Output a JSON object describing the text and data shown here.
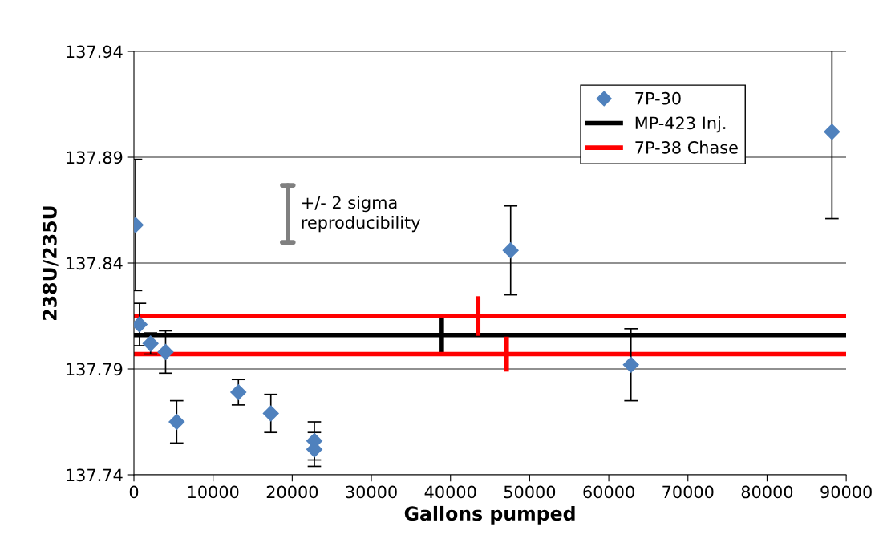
{
  "chart_data": {
    "type": "scatter",
    "xlabel": "Gallons pumped",
    "ylabel": "238U/235U",
    "xlim": [
      0,
      90000
    ],
    "xticks": [
      0,
      10000,
      20000,
      30000,
      40000,
      50000,
      60000,
      70000,
      80000,
      90000
    ],
    "ylim": [
      137.74,
      137.94
    ],
    "yticks": [
      137.74,
      137.79,
      137.84,
      137.89,
      137.94
    ],
    "grid": "y",
    "legend": "top right",
    "annotations": [
      "+/- 2 sigma reproducibility"
    ],
    "series": [
      {
        "name": "7P-30",
        "marker": "diamond",
        "color": "#4f81bd",
        "x": [
          200,
          700,
          2100,
          4000,
          5400,
          13200,
          17300,
          22800,
          22800,
          47600,
          62800,
          88200
        ],
        "values": [
          137.858,
          137.811,
          137.802,
          137.798,
          137.765,
          137.779,
          137.769,
          137.756,
          137.752,
          137.846,
          137.792,
          137.902
        ],
        "errors": [
          0.031,
          0.01,
          0.005,
          0.01,
          0.01,
          0.006,
          0.009,
          0.009,
          0.008,
          0.021,
          0.017,
          0.041
        ]
      },
      {
        "name": "MP-423 Inj.",
        "type": "line",
        "color": "#000000",
        "x": [
          0,
          38900,
          90000
        ],
        "values": [
          137.806,
          137.806,
          137.806
        ],
        "errors": [
          null,
          0.0076,
          null
        ]
      },
      {
        "name": "7P-38 Chase",
        "type": "line",
        "color": "#ff0000",
        "x": [
          0,
          43500,
          90000
        ],
        "values": [
          137.815,
          137.815,
          137.815
        ],
        "errors": [
          null,
          0.0083,
          null
        ]
      },
      {
        "type": "line",
        "color": "#ff0000",
        "x": [
          0,
          47100,
          90000
        ],
        "values": [
          137.797,
          137.797,
          137.797
        ],
        "errors": [
          null,
          0.0072,
          null
        ]
      }
    ]
  }
}
